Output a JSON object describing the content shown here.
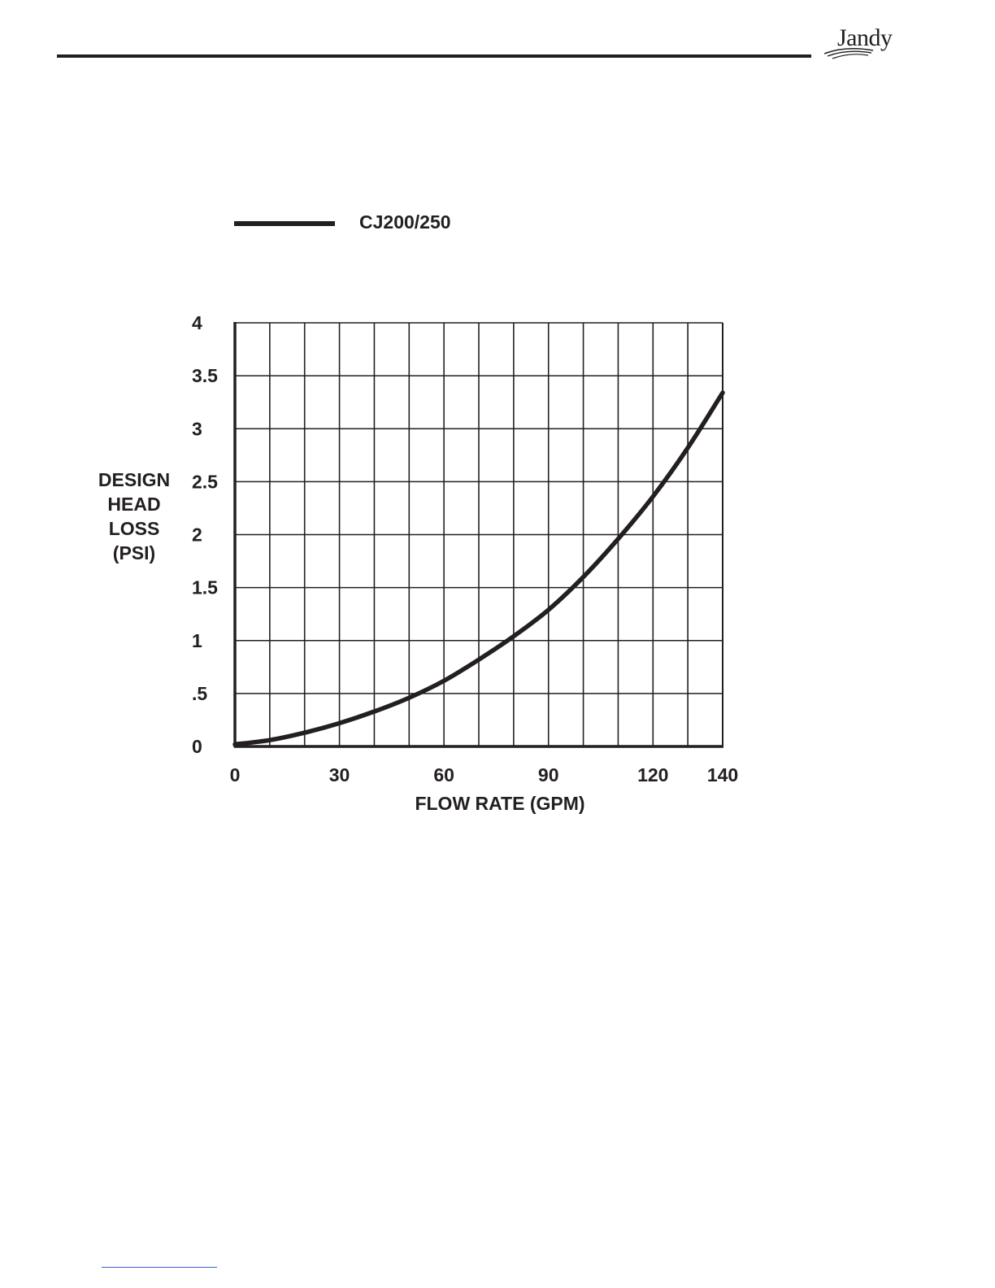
{
  "header": {
    "logo_text": "Jandy",
    "colors": {
      "ink": "#231f20",
      "footer_rule": "#3a5bd9"
    }
  },
  "chart_data": {
    "type": "line",
    "xlabel": "FLOW RATE (GPM)",
    "ylabel_lines": [
      "DESIGN",
      "HEAD",
      "LOSS",
      "(PSI)"
    ],
    "xlim": [
      0,
      140
    ],
    "ylim": [
      0,
      4
    ],
    "x_ticks": [
      {
        "value": 0,
        "label": "0"
      },
      {
        "value": 30,
        "label": "30"
      },
      {
        "value": 60,
        "label": "60"
      },
      {
        "value": 90,
        "label": "90"
      },
      {
        "value": 120,
        "label": "120"
      },
      {
        "value": 140,
        "label": "140"
      }
    ],
    "y_ticks": [
      {
        "value": 0,
        "label": "0"
      },
      {
        "value": 0.5,
        "label": ".5"
      },
      {
        "value": 1,
        "label": "1"
      },
      {
        "value": 1.5,
        "label": "1.5"
      },
      {
        "value": 2,
        "label": "2"
      },
      {
        "value": 2.5,
        "label": "2.5"
      },
      {
        "value": 3,
        "label": "3"
      },
      {
        "value": 3.5,
        "label": "3.5"
      },
      {
        "value": 4,
        "label": "4"
      }
    ],
    "grid": true,
    "x_grid_step": 10,
    "y_grid_step": 0.5,
    "legend": "top-left",
    "series": [
      {
        "name": "CJ200/250",
        "color": "#231f20",
        "x": [
          0,
          10,
          20,
          30,
          40,
          50,
          60,
          70,
          80,
          90,
          100,
          110,
          120,
          130,
          140
        ],
        "y": [
          0.02,
          0.06,
          0.13,
          0.22,
          0.33,
          0.46,
          0.62,
          0.82,
          1.04,
          1.29,
          1.6,
          1.96,
          2.36,
          2.82,
          3.34
        ]
      }
    ]
  }
}
